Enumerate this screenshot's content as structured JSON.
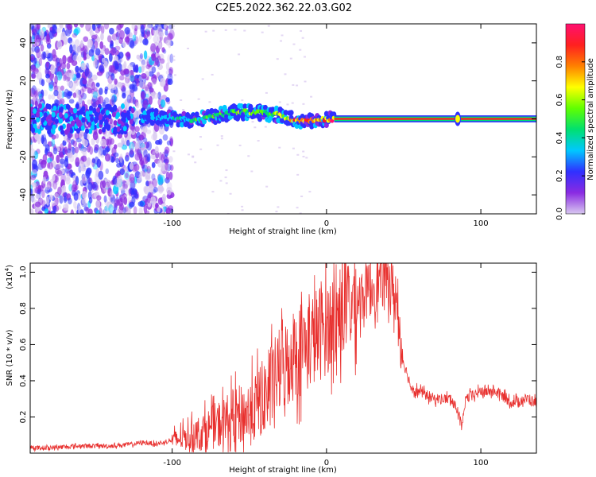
{
  "title": "C2E5.2022.362.22.03.G02",
  "chart_data": [
    {
      "type": "heatmap",
      "xlabel": "Height of straight line (km)",
      "ylabel": "Frequency (Hz)",
      "xlim": [
        -192,
        136
      ],
      "ylim": [
        -50,
        50
      ],
      "xticks": [
        -100,
        0,
        100
      ],
      "yticks": [
        -40,
        -20,
        0,
        20,
        40
      ],
      "colorbar": {
        "label": "Normalized spectral amplitude",
        "range": [
          0.0,
          1.0
        ],
        "ticks": [
          0.0,
          0.2,
          0.4,
          0.6,
          0.8
        ],
        "colormap": [
          "#d8c8f0",
          "#8a2be2",
          "#3030ff",
          "#00c8ff",
          "#00e070",
          "#60ff00",
          "#ffff00",
          "#ff8000",
          "#ff2020",
          "#ff1070"
        ]
      },
      "ridge_track": [
        {
          "x": -120,
          "y": 1.5,
          "amp": 0.3
        },
        {
          "x": -105,
          "y": 0.5,
          "amp": 0.4
        },
        {
          "x": -90,
          "y": -0.5,
          "amp": 0.5
        },
        {
          "x": -75,
          "y": 1.0,
          "amp": 0.55
        },
        {
          "x": -60,
          "y": 3.5,
          "amp": 0.6
        },
        {
          "x": -45,
          "y": 3.5,
          "amp": 0.65
        },
        {
          "x": -30,
          "y": 2.0,
          "amp": 0.7
        },
        {
          "x": -20,
          "y": -1.0,
          "amp": 0.85
        },
        {
          "x": -10,
          "y": -1.0,
          "amp": 0.85
        },
        {
          "x": 5,
          "y": 0.0,
          "amp": 0.95
        },
        {
          "x": 136,
          "y": 0.0,
          "amp": 0.95
        }
      ]
    },
    {
      "type": "line",
      "xlabel": "Height of straight line (km)",
      "ylabel": "SNR (10 * v/v)",
      "y_multiplier_label": "(x10",
      "y_multiplier_exp": "4",
      "y_multiplier_close": ")",
      "xlim": [
        -192,
        136
      ],
      "ylim": [
        0.0,
        1.05
      ],
      "xticks": [
        -100,
        0,
        100
      ],
      "yticks": [
        0.2,
        0.4,
        0.6,
        0.8,
        1.0
      ],
      "color": "#e8302e",
      "series": [
        {
          "x": [
            -192,
            -180,
            -160,
            -140,
            -125,
            -120,
            -110,
            -100,
            -90,
            -80,
            -70,
            -60,
            -50,
            -40,
            -30,
            -20,
            -10,
            0,
            10,
            20,
            30,
            40,
            45,
            50,
            55,
            60,
            70,
            80,
            85,
            88,
            90,
            100,
            110,
            120,
            130,
            136
          ],
          "y": [
            0.03,
            0.03,
            0.04,
            0.04,
            0.05,
            0.06,
            0.05,
            0.07,
            0.09,
            0.12,
            0.16,
            0.2,
            0.22,
            0.32,
            0.46,
            0.56,
            0.62,
            0.7,
            0.78,
            0.86,
            0.92,
            0.98,
            0.85,
            0.5,
            0.36,
            0.34,
            0.3,
            0.3,
            0.24,
            0.13,
            0.3,
            0.34,
            0.34,
            0.28,
            0.3,
            0.28
          ]
        }
      ]
    }
  ]
}
